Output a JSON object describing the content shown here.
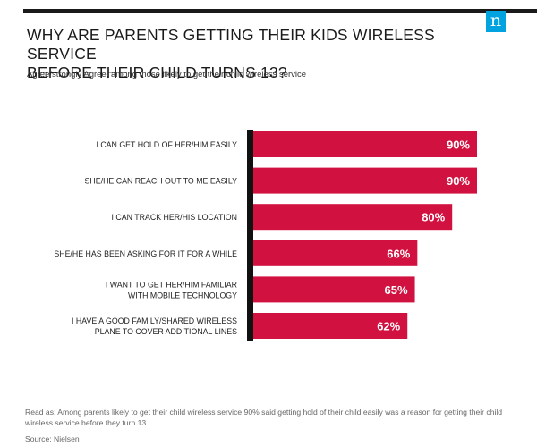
{
  "brand": {
    "logo_text": "n",
    "accent_color": "#00a3e0",
    "bar_color": "#d11240",
    "axis_color": "#111111"
  },
  "header": {
    "title_line1": "WHY ARE PARENTS GETTING THEIR KIDS WIRELESS SERVICE",
    "title_line2": "BEFORE THEIR CHILD TURNS 13?",
    "subtitle": "Agree/strongly Agree, among those likely to get their child wireless service"
  },
  "chart_data": {
    "type": "bar",
    "orientation": "horizontal",
    "categories": [
      "I CAN GET HOLD OF HER/HIM EASILY",
      "SHE/HE CAN REACH OUT TO ME EASILY",
      "I CAN TRACK HER/HIS LOCATION",
      "SHE/HE HAS BEEN ASKING FOR IT FOR A WHILE",
      "I WANT TO GET HER/HIM FAMILIAR\nWITH MOBILE TECHNOLOGY",
      "I HAVE A GOOD FAMILY/SHARED WIRELESS\nPLANE TO COVER ADDITIONAL LINES"
    ],
    "values": [
      90,
      90,
      80,
      66,
      65,
      62
    ],
    "value_labels": [
      "90%",
      "90%",
      "80%",
      "66%",
      "65%",
      "62%"
    ],
    "xlim": [
      0,
      100
    ],
    "grid": false,
    "legend": "none"
  },
  "footer": {
    "note": "Read as: Among parents likely to get their child wireless service 90% said getting hold of their child easily was a reason for getting their child wireless service before they turn 13.",
    "source": "Source: Nielsen"
  }
}
